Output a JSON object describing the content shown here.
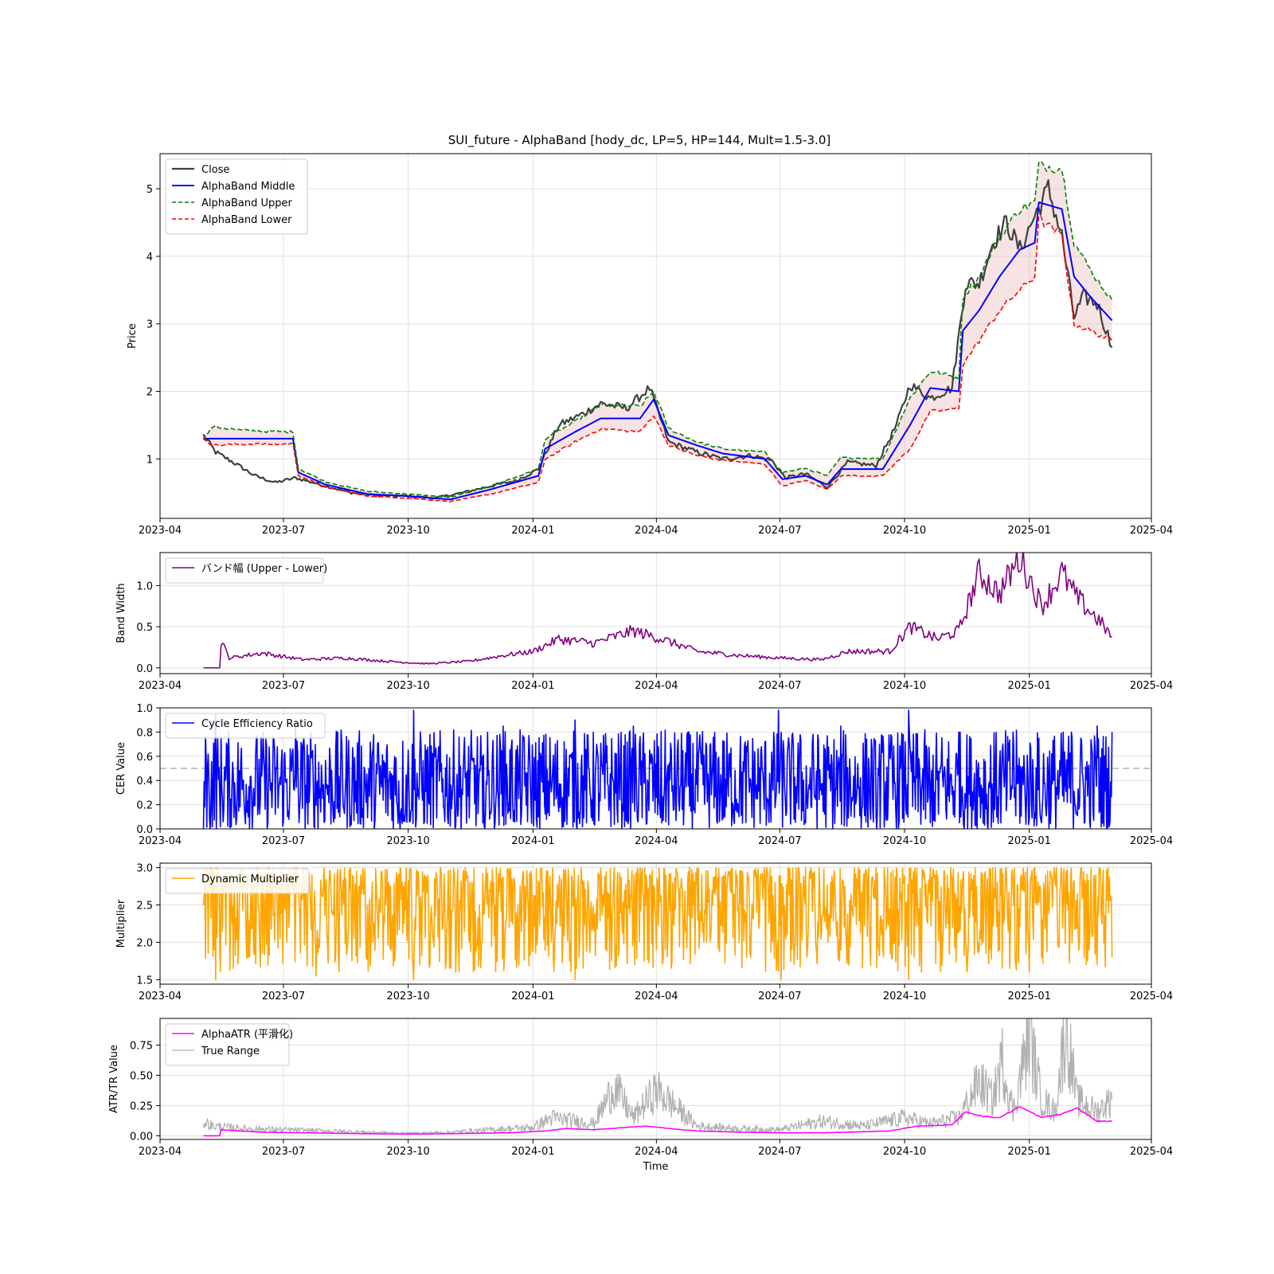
{
  "figure_title": "SUI_future - AlphaBand [hody_dc, LP=5, HP=144, Mult=1.5-3.0]",
  "x_axis": {
    "start": "2023-04-01",
    "end": "2025-04-01",
    "tick_labels": [
      "2023-04",
      "2023-07",
      "2023-10",
      "2024-01",
      "2024-04",
      "2024-07",
      "2024-10",
      "2025-01",
      "2025-04"
    ],
    "label": "Time"
  },
  "colors": {
    "close": "#3f3f3f",
    "middle": "#0000ff",
    "upper": "#008000",
    "lower": "#ff0000",
    "band_width": "#800080",
    "cer": "#0000ff",
    "multiplier": "#ffa500",
    "atr": "#ff00ff",
    "true_range": "#b0b0b0"
  },
  "chart_data": [
    {
      "type": "line",
      "ylabel": "Price",
      "ylim": [
        0.12,
        5.52
      ],
      "yticks": [
        1,
        2,
        3,
        4,
        5
      ],
      "grid": true,
      "legend_position": "top-left",
      "fill_between": [
        "AlphaBand Upper",
        "AlphaBand Lower"
      ],
      "series": [
        {
          "name": "Close",
          "x": [
            "2023-05-03",
            "2023-05-12",
            "2023-05-25",
            "2023-06-10",
            "2023-06-25",
            "2023-07-10",
            "2023-08-01",
            "2023-08-20",
            "2023-09-10",
            "2023-10-01",
            "2023-10-20",
            "2023-11-10",
            "2023-12-01",
            "2023-12-20",
            "2024-01-05",
            "2024-01-20",
            "2024-02-05",
            "2024-02-20",
            "2024-03-10",
            "2024-03-27",
            "2024-04-10",
            "2024-05-01",
            "2024-05-20",
            "2024-06-10",
            "2024-06-25",
            "2024-07-05",
            "2024-07-20",
            "2024-08-05",
            "2024-08-20",
            "2024-09-10",
            "2024-09-25",
            "2024-10-05",
            "2024-10-20",
            "2024-11-05",
            "2024-11-15",
            "2024-11-25",
            "2024-12-05",
            "2024-12-15",
            "2024-12-25",
            "2025-01-05",
            "2025-01-15",
            "2025-01-25",
            "2025-02-03",
            "2025-02-10",
            "2025-02-20",
            "2025-03-03"
          ],
          "values": [
            1.35,
            1.1,
            0.95,
            0.75,
            0.65,
            0.72,
            0.6,
            0.5,
            0.45,
            0.45,
            0.42,
            0.5,
            0.6,
            0.68,
            0.85,
            1.5,
            1.65,
            1.82,
            1.75,
            2.05,
            1.25,
            1.1,
            1.0,
            1.05,
            0.98,
            0.72,
            0.78,
            0.58,
            0.95,
            0.9,
            1.5,
            2.1,
            1.9,
            2.05,
            3.6,
            3.6,
            4.2,
            4.5,
            4.1,
            4.6,
            5.0,
            4.3,
            3.1,
            3.4,
            3.3,
            2.65
          ]
        },
        {
          "name": "AlphaBand Middle",
          "x": [
            "2023-05-03",
            "2023-07-08",
            "2023-07-12",
            "2023-08-01",
            "2023-09-01",
            "2023-10-01",
            "2023-11-01",
            "2023-12-01",
            "2024-01-05",
            "2024-01-10",
            "2024-02-01",
            "2024-02-20",
            "2024-03-20",
            "2024-03-30",
            "2024-04-10",
            "2024-05-01",
            "2024-05-20",
            "2024-06-20",
            "2024-07-03",
            "2024-07-20",
            "2024-08-05",
            "2024-08-15",
            "2024-09-15",
            "2024-10-05",
            "2024-10-20",
            "2024-11-10",
            "2024-11-13",
            "2024-11-25",
            "2024-12-10",
            "2024-12-25",
            "2025-01-05",
            "2025-01-08",
            "2025-01-25",
            "2025-02-03",
            "2025-02-15",
            "2025-03-03"
          ],
          "values": [
            1.3,
            1.3,
            0.8,
            0.62,
            0.48,
            0.45,
            0.4,
            0.55,
            0.75,
            1.15,
            1.4,
            1.6,
            1.6,
            1.88,
            1.35,
            1.2,
            1.08,
            1.0,
            0.7,
            0.75,
            0.62,
            0.85,
            0.85,
            1.5,
            2.05,
            2.0,
            2.9,
            3.2,
            3.7,
            4.1,
            4.2,
            4.8,
            4.7,
            3.7,
            3.4,
            3.05
          ]
        },
        {
          "name": "AlphaBand Upper",
          "x": [
            "2023-05-03",
            "2023-05-10",
            "2023-06-01",
            "2023-07-08",
            "2023-07-12",
            "2023-08-01",
            "2023-09-01",
            "2023-10-01",
            "2023-11-01",
            "2023-12-01",
            "2024-01-05",
            "2024-01-10",
            "2024-02-01",
            "2024-02-20",
            "2024-03-20",
            "2024-03-30",
            "2024-04-10",
            "2024-05-01",
            "2024-05-20",
            "2024-06-20",
            "2024-07-03",
            "2024-07-20",
            "2024-08-05",
            "2024-08-15",
            "2024-09-15",
            "2024-10-05",
            "2024-10-20",
            "2024-11-10",
            "2024-11-13",
            "2024-11-25",
            "2024-12-10",
            "2024-12-25",
            "2025-01-05",
            "2025-01-08",
            "2025-01-25",
            "2025-02-03",
            "2025-02-15",
            "2025-03-03"
          ],
          "values": [
            1.3,
            1.48,
            1.42,
            1.4,
            0.86,
            0.66,
            0.52,
            0.48,
            0.43,
            0.6,
            0.85,
            1.3,
            1.55,
            1.8,
            1.78,
            2.0,
            1.45,
            1.25,
            1.15,
            1.1,
            0.8,
            0.86,
            0.75,
            1.02,
            1.0,
            1.9,
            2.3,
            2.2,
            3.4,
            3.7,
            4.3,
            4.7,
            4.8,
            5.35,
            5.3,
            4.2,
            3.8,
            3.35
          ]
        },
        {
          "name": "AlphaBand Lower",
          "x": [
            "2023-05-03",
            "2023-05-10",
            "2023-06-01",
            "2023-07-08",
            "2023-07-12",
            "2023-08-01",
            "2023-09-01",
            "2023-10-01",
            "2023-11-01",
            "2023-12-01",
            "2024-01-05",
            "2024-01-10",
            "2024-02-01",
            "2024-02-20",
            "2024-03-20",
            "2024-03-30",
            "2024-04-10",
            "2024-05-01",
            "2024-05-20",
            "2024-06-20",
            "2024-07-03",
            "2024-07-20",
            "2024-08-05",
            "2024-08-15",
            "2024-09-15",
            "2024-10-05",
            "2024-10-20",
            "2024-11-10",
            "2024-11-13",
            "2024-11-25",
            "2024-12-10",
            "2024-12-25",
            "2025-01-05",
            "2025-01-08",
            "2025-01-25",
            "2025-02-03",
            "2025-02-15",
            "2025-03-03"
          ],
          "values": [
            1.3,
            1.2,
            1.22,
            1.22,
            0.76,
            0.58,
            0.45,
            0.42,
            0.37,
            0.48,
            0.65,
            1.0,
            1.25,
            1.45,
            1.4,
            1.65,
            1.2,
            1.05,
            0.98,
            0.92,
            0.6,
            0.68,
            0.55,
            0.75,
            0.75,
            1.15,
            1.7,
            1.75,
            2.4,
            2.75,
            3.2,
            3.5,
            3.7,
            4.55,
            4.3,
            3.0,
            2.9,
            2.75
          ]
        }
      ]
    },
    {
      "type": "line",
      "ylabel": "Band Width",
      "ylim": [
        -0.07,
        1.4
      ],
      "yticks": [
        0.0,
        0.5,
        1.0
      ],
      "grid": true,
      "legend_position": "top-left",
      "series": [
        {
          "name": "バンド幅 (Upper - Lower)",
          "x": [
            "2023-05-03",
            "2023-05-15",
            "2023-05-16",
            "2023-05-22",
            "2023-06-15",
            "2023-07-15",
            "2023-08-15",
            "2023-09-15",
            "2023-10-15",
            "2023-11-15",
            "2023-12-10",
            "2024-01-01",
            "2024-01-20",
            "2024-02-15",
            "2024-03-15",
            "2024-04-05",
            "2024-05-01",
            "2024-06-01",
            "2024-07-01",
            "2024-08-01",
            "2024-08-20",
            "2024-09-20",
            "2024-10-05",
            "2024-10-25",
            "2024-11-10",
            "2024-11-25",
            "2024-12-10",
            "2024-12-25",
            "2025-01-10",
            "2025-01-25",
            "2025-02-05",
            "2025-02-20",
            "2025-03-03"
          ],
          "values": [
            0.0,
            0.0,
            0.33,
            0.12,
            0.18,
            0.1,
            0.12,
            0.08,
            0.05,
            0.08,
            0.15,
            0.2,
            0.35,
            0.3,
            0.45,
            0.35,
            0.2,
            0.15,
            0.12,
            0.1,
            0.2,
            0.2,
            0.5,
            0.35,
            0.45,
            1.15,
            0.9,
            1.35,
            0.75,
            1.15,
            0.85,
            0.6,
            0.38
          ]
        }
      ]
    },
    {
      "type": "line",
      "ylabel": "CER Value",
      "ylim": [
        0.0,
        1.0
      ],
      "yticks": [
        0.0,
        0.2,
        0.4,
        0.6,
        0.8,
        1.0
      ],
      "grid": true,
      "reference_line": 0.5,
      "legend_position": "top-left",
      "series": [
        {
          "name": "Cycle Efficiency Ratio",
          "x": [
            "2023-05-03",
            "2023-05-05",
            "2023-05-08",
            "2023-05-12",
            "2023-06-05",
            "2023-07-10",
            "2023-09-25",
            "2023-10-05",
            "2023-11-25",
            "2023-12-10",
            "2024-01-05",
            "2024-02-01",
            "2024-03-15",
            "2024-04-05",
            "2024-05-01",
            "2024-06-01",
            "2024-06-30",
            "2024-07-20",
            "2024-08-15",
            "2024-09-10",
            "2024-10-04",
            "2024-10-20",
            "2024-11-10",
            "2024-12-01",
            "2024-12-20",
            "2025-01-10",
            "2025-02-01",
            "2025-02-20",
            "2025-03-03"
          ],
          "values": [
            0.0,
            0.6,
            0.0,
            0.95,
            0.1,
            0.9,
            0.0,
            0.98,
            0.05,
            0.85,
            0.1,
            0.9,
            0.85,
            0.05,
            0.8,
            0.1,
            0.98,
            0.05,
            0.85,
            0.1,
            0.98,
            0.05,
            0.8,
            0.05,
            0.8,
            0.05,
            0.8,
            0.85,
            0.8
          ]
        }
      ]
    },
    {
      "type": "line",
      "ylabel": "Multiplier",
      "ylim": [
        1.44,
        3.06
      ],
      "yticks": [
        1.5,
        2.0,
        2.5,
        3.0
      ],
      "grid": true,
      "legend_position": "top-left",
      "series": [
        {
          "name": "Dynamic Multiplier",
          "x": [
            "2023-05-03",
            "2023-05-08",
            "2023-05-12",
            "2023-05-20",
            "2023-06-05",
            "2023-06-20",
            "2023-07-05",
            "2023-07-25",
            "2023-08-15",
            "2023-09-05",
            "2023-09-25",
            "2023-10-05",
            "2023-10-25",
            "2023-11-15",
            "2023-12-05",
            "2024-01-01",
            "2024-02-01",
            "2024-03-01",
            "2024-04-01",
            "2024-05-01",
            "2024-06-01",
            "2024-07-02",
            "2024-07-20",
            "2024-08-15",
            "2024-09-10",
            "2024-10-04",
            "2024-10-20",
            "2024-11-15",
            "2024-12-15",
            "2025-01-10",
            "2025-02-01",
            "2025-02-20",
            "2025-03-03"
          ],
          "values": [
            2.5,
            3.0,
            1.5,
            2.9,
            1.8,
            3.0,
            2.2,
            1.55,
            3.0,
            2.0,
            3.0,
            1.5,
            3.0,
            2.0,
            3.0,
            1.9,
            1.5,
            3.0,
            1.9,
            3.0,
            2.0,
            1.5,
            3.0,
            1.9,
            3.0,
            1.5,
            3.0,
            2.1,
            3.0,
            1.8,
            3.0,
            1.7,
            1.8
          ]
        }
      ]
    },
    {
      "type": "line",
      "ylabel": "ATR/TR Value",
      "xlabel": "Time",
      "ylim": [
        -0.03,
        0.97
      ],
      "yticks": [
        0.0,
        0.25,
        0.5,
        0.75
      ],
      "grid": true,
      "legend_position": "top-left",
      "series": [
        {
          "name": "AlphaATR (平滑化)",
          "x": [
            "2023-05-03",
            "2023-05-15",
            "2023-05-16",
            "2023-06-15",
            "2023-07-15",
            "2023-08-15",
            "2023-09-15",
            "2023-10-15",
            "2023-11-15",
            "2023-12-15",
            "2024-01-10",
            "2024-01-25",
            "2024-02-15",
            "2024-03-10",
            "2024-03-25",
            "2024-04-10",
            "2024-05-01",
            "2024-06-01",
            "2024-07-01",
            "2024-08-01",
            "2024-08-20",
            "2024-09-20",
            "2024-10-10",
            "2024-11-05",
            "2024-11-15",
            "2024-11-28",
            "2024-12-10",
            "2024-12-25",
            "2025-01-10",
            "2025-01-25",
            "2025-02-05",
            "2025-02-20",
            "2025-03-03"
          ],
          "values": [
            0.0,
            0.0,
            0.05,
            0.03,
            0.025,
            0.02,
            0.015,
            0.015,
            0.02,
            0.025,
            0.04,
            0.06,
            0.05,
            0.07,
            0.08,
            0.06,
            0.04,
            0.03,
            0.025,
            0.025,
            0.03,
            0.04,
            0.08,
            0.09,
            0.2,
            0.16,
            0.15,
            0.24,
            0.15,
            0.18,
            0.23,
            0.12,
            0.12
          ]
        },
        {
          "name": "True Range",
          "x": [
            "2023-05-03",
            "2023-05-10",
            "2023-06-01",
            "2023-07-01",
            "2023-08-01",
            "2023-09-01",
            "2023-10-01",
            "2023-11-01",
            "2023-12-01",
            "2024-01-01",
            "2024-01-15",
            "2024-02-15",
            "2024-03-01",
            "2024-03-15",
            "2024-04-01",
            "2024-05-01",
            "2024-06-01",
            "2024-07-01",
            "2024-08-01",
            "2024-09-01",
            "2024-10-01",
            "2024-10-20",
            "2024-11-10",
            "2024-11-25",
            "2024-12-05",
            "2024-12-12",
            "2024-12-20",
            "2025-01-01",
            "2025-01-10",
            "2025-01-20",
            "2025-01-28",
            "2025-02-05",
            "2025-02-20",
            "2025-03-03"
          ],
          "values": [
            0.12,
            0.08,
            0.06,
            0.05,
            0.04,
            0.03,
            0.02,
            0.03,
            0.05,
            0.07,
            0.15,
            0.1,
            0.41,
            0.15,
            0.38,
            0.08,
            0.06,
            0.05,
            0.12,
            0.08,
            0.15,
            0.1,
            0.15,
            0.45,
            0.3,
            0.62,
            0.2,
            0.84,
            0.3,
            0.2,
            0.91,
            0.3,
            0.2,
            0.3
          ]
        }
      ]
    }
  ]
}
